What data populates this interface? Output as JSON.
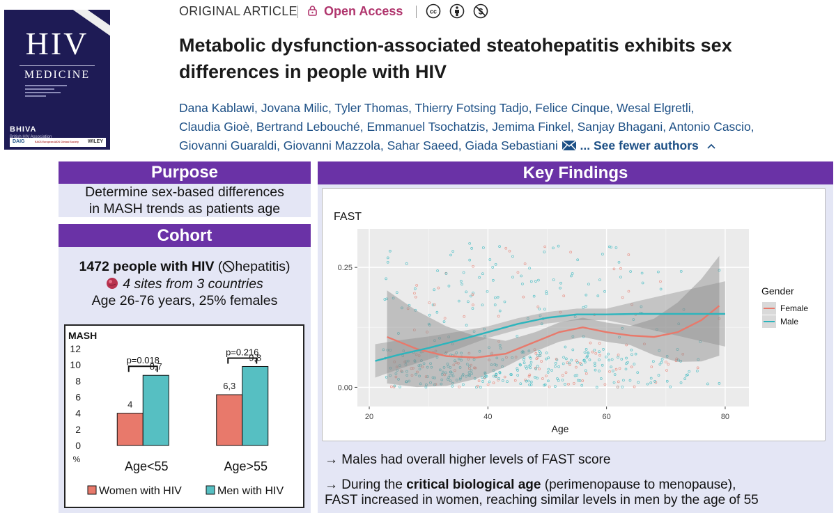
{
  "journal": {
    "cover_title": "HIV",
    "cover_subtitle": "MEDICINE",
    "cover_org": "BHIVA",
    "cover_org_sub": "British HIV Association",
    "cover_logos": [
      "DAIG",
      "EACS European AIDS Clinical Society",
      "WILEY"
    ]
  },
  "article": {
    "type": "ORIGINAL ARTICLE",
    "access": "Open Access",
    "title": "Metabolic dysfunction-associated steatohepatitis exhibits sex differences in people with HIV",
    "authors_line1": "Dana Kablawi, Jovana Milic, Tyler Thomas, Thierry Fotsing Tadjo, Felice Cinque, Wesal Elgretli,",
    "authors_line2": "Claudia Gioè, Bertrand Lebouché, Emmanuel Tsochatzis, Jemima Finkel, Sanjay Bhagani, Antonio Cascio,",
    "authors_line3": "Giovanni Guaraldi, Giovanni Mazzola, Sahar Saeed, Giada Sebastiani",
    "see_fewer": "... See fewer authors",
    "license_icons": [
      "cc-icon",
      "by-icon",
      "nc-icon"
    ]
  },
  "purpose": {
    "heading": "Purpose",
    "line1": "Determine sex-based differences",
    "line2": "in MASH trends as patients age"
  },
  "cohort": {
    "heading": "Cohort",
    "count_bold": "1472 people with HIV",
    "count_rest": " (",
    "count_hep": "hepatitis)",
    "sites": "4 sites from 3 countries",
    "ages": "Age 26-76 years, 25% females"
  },
  "findings": {
    "heading": "Key Findings",
    "point1": "→ Males had overall higher levels of FAST score",
    "point2_pre": "→ During the ",
    "point2_bold": "critical biological age",
    "point2_post": " (perimenopause to menopause),",
    "point2_line2": "FAST increased in women, reaching similar levels in men by the age of 55"
  },
  "chart_data": [
    {
      "type": "bar",
      "title": "MASH",
      "ylabel": "%",
      "ylim": [
        0,
        12
      ],
      "yticks": [
        0,
        2,
        4,
        6,
        8,
        10,
        12
      ],
      "categories": [
        "Age<55",
        "Age>55"
      ],
      "series": [
        {
          "name": "Women with HIV",
          "values": [
            4,
            6.3
          ],
          "labels": [
            "4",
            "6,3"
          ],
          "color": "#e8796b"
        },
        {
          "name": "Men with HIV",
          "values": [
            8.7,
            9.8
          ],
          "labels": [
            "8,7",
            "9,8"
          ],
          "color": "#56bfc2"
        }
      ],
      "annotations": [
        "p=0.018",
        "p=0.216"
      ]
    },
    {
      "type": "scatter",
      "title": "FAST",
      "xlabel": "Age",
      "ylabel": "",
      "xlim": [
        18,
        84
      ],
      "ylim": [
        -0.04,
        0.33
      ],
      "xticks": [
        20,
        40,
        60,
        80
      ],
      "yticks": [
        0.0,
        0.25
      ],
      "ytick_labels": [
        "0.00",
        "0.25"
      ],
      "legend_title": "Gender",
      "legend_position": "right",
      "series": [
        {
          "name": "Female",
          "color": "#e8796b",
          "smooth_x": [
            23,
            28,
            33,
            38,
            43,
            48,
            52,
            56,
            60,
            64,
            68,
            72,
            76,
            79
          ],
          "smooth_y": [
            0.105,
            0.08,
            0.065,
            0.062,
            0.07,
            0.095,
            0.115,
            0.125,
            0.115,
            0.108,
            0.105,
            0.115,
            0.14,
            0.17
          ]
        },
        {
          "name": "Male",
          "color": "#2cb5bd",
          "smooth_x": [
            21,
            25,
            30,
            35,
            40,
            45,
            50,
            55,
            60,
            65,
            70,
            75,
            80
          ],
          "smooth_y": [
            0.055,
            0.068,
            0.082,
            0.098,
            0.115,
            0.132,
            0.145,
            0.152,
            0.152,
            0.153,
            0.153,
            0.153,
            0.153
          ]
        }
      ]
    }
  ]
}
